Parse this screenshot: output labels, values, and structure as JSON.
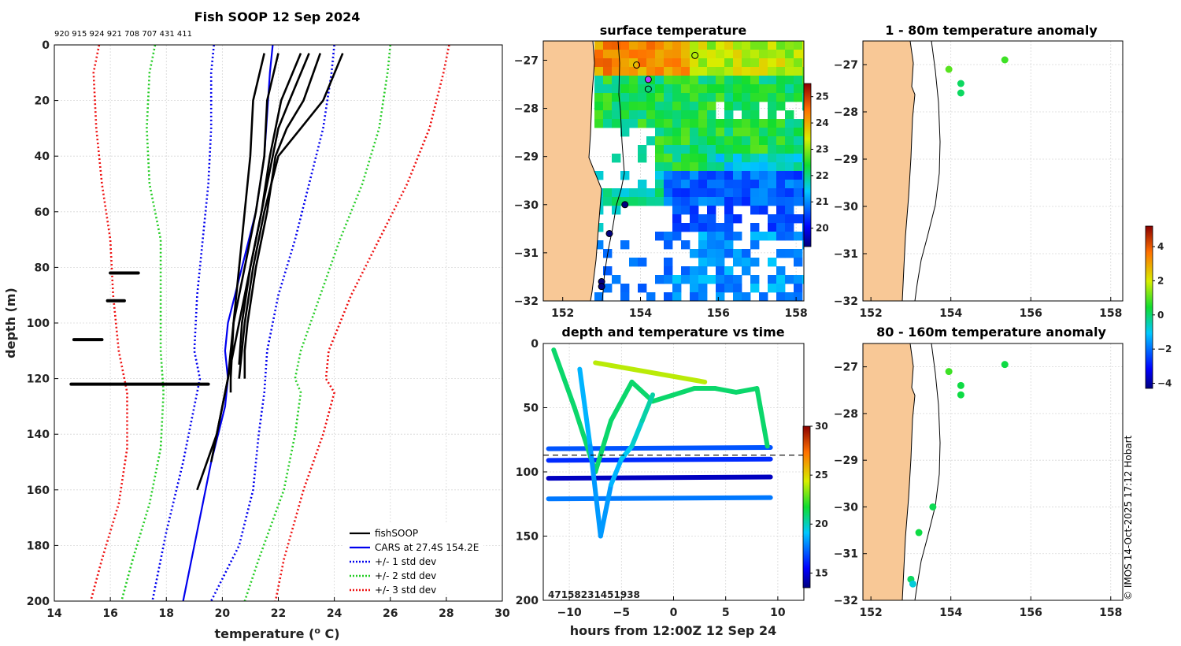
{
  "chart_data": [
    {
      "id": "profile",
      "type": "line",
      "title": "Fish SOOP 12 Sep 2024",
      "id_labels": "920 915 924 921 708 707 431 411",
      "xlabel": "temperature (",
      "xlabel_sup": "o",
      "xlabel_unit": " C)",
      "ylabel": "depth (m)",
      "xlim": [
        14,
        30
      ],
      "ylim": [
        0,
        200
      ],
      "xticks": [
        14,
        16,
        18,
        20,
        22,
        24,
        26,
        28,
        30
      ],
      "yticks": [
        0,
        20,
        40,
        60,
        80,
        100,
        120,
        140,
        160,
        180,
        200
      ],
      "legend": [
        "fishSOOP",
        "CARS at 27.4S 154.2E",
        "+/- 1 std dev",
        "+/- 2 std dev",
        "+/- 3 std dev"
      ],
      "legend_colors": [
        "#000000",
        "#0000ee",
        "#0000ee",
        "#22cc22",
        "#ee1111"
      ],
      "series": [
        {
          "name": "CARS mean",
          "depth": [
            0,
            10,
            25,
            40,
            60,
            80,
            100,
            110,
            120,
            130,
            150,
            175,
            200
          ],
          "temp": [
            21.8,
            21.7,
            21.6,
            21.5,
            21.2,
            20.7,
            20.2,
            20.1,
            20.2,
            20.1,
            19.6,
            19.1,
            18.6
          ]
        },
        {
          "name": "-1 std",
          "depth": [
            0,
            10,
            30,
            50,
            70,
            90,
            110,
            120,
            130,
            150,
            175,
            200
          ],
          "temp": [
            19.7,
            19.6,
            19.6,
            19.5,
            19.3,
            19.1,
            19.0,
            19.2,
            19.0,
            18.6,
            18.0,
            17.5
          ]
        },
        {
          "name": "+1 std",
          "depth": [
            0,
            10,
            30,
            50,
            70,
            90,
            110,
            125,
            140,
            160,
            180,
            200
          ],
          "temp": [
            24.0,
            23.9,
            23.6,
            23.1,
            22.6,
            22.0,
            21.6,
            21.5,
            21.3,
            21.1,
            20.6,
            19.6
          ]
        },
        {
          "name": "-2 std",
          "depth": [
            0,
            10,
            30,
            50,
            70,
            90,
            110,
            125,
            145,
            165,
            185,
            200
          ],
          "temp": [
            17.6,
            17.4,
            17.3,
            17.4,
            17.8,
            17.8,
            17.8,
            17.9,
            17.8,
            17.4,
            16.8,
            16.4
          ]
        },
        {
          "name": "+2 std",
          "depth": [
            0,
            10,
            30,
            50,
            70,
            90,
            110,
            120,
            125,
            140,
            160,
            185,
            200
          ],
          "temp": [
            26.0,
            25.9,
            25.6,
            25.0,
            24.2,
            23.5,
            22.8,
            22.6,
            22.8,
            22.6,
            22.2,
            21.3,
            20.8
          ]
        },
        {
          "name": "-3 std",
          "depth": [
            0,
            10,
            30,
            50,
            70,
            90,
            110,
            125,
            145,
            165,
            185,
            200
          ],
          "temp": [
            15.6,
            15.4,
            15.5,
            15.7,
            16.0,
            16.1,
            16.3,
            16.6,
            16.6,
            16.3,
            15.7,
            15.3
          ]
        },
        {
          "name": "+3 std",
          "depth": [
            0,
            10,
            30,
            50,
            70,
            90,
            110,
            120,
            125,
            140,
            160,
            185,
            200
          ],
          "temp": [
            28.1,
            27.9,
            27.4,
            26.6,
            25.6,
            24.6,
            23.8,
            23.7,
            24.0,
            23.6,
            22.9,
            22.2,
            21.9
          ]
        }
      ],
      "profiles": [
        {
          "depth": [
            3,
            20,
            40,
            60,
            80,
            100,
            120,
            125
          ],
          "temp": [
            21.5,
            21.1,
            21.0,
            20.8,
            20.6,
            20.4,
            20.3,
            20.3
          ]
        },
        {
          "depth": [
            3,
            20,
            40,
            60,
            80,
            100,
            120,
            140,
            160
          ],
          "temp": [
            22.0,
            21.6,
            21.5,
            21.2,
            20.8,
            20.4,
            20.2,
            19.8,
            19.1
          ]
        },
        {
          "depth": [
            3,
            20,
            40,
            60,
            80,
            100,
            120,
            150
          ],
          "temp": [
            22.8,
            22.1,
            21.7,
            21.4,
            21.0,
            20.6,
            20.2,
            19.6
          ]
        },
        {
          "depth": [
            3,
            20,
            30,
            40,
            60,
            80,
            100,
            110,
            120
          ],
          "temp": [
            23.5,
            22.9,
            22.3,
            21.9,
            21.6,
            21.2,
            20.9,
            20.8,
            20.8
          ]
        },
        {
          "depth": [
            3,
            20,
            30,
            40,
            60,
            80,
            100,
            120
          ],
          "temp": [
            24.3,
            23.6,
            22.8,
            22.0,
            21.5,
            21.1,
            20.8,
            20.6
          ]
        },
        {
          "depth": [
            3,
            20,
            30,
            40,
            60,
            80,
            100,
            115
          ],
          "temp": [
            23.1,
            22.4,
            22.0,
            21.8,
            21.4,
            21.0,
            20.7,
            20.6
          ]
        }
      ],
      "flat_segments": [
        {
          "depth": 82,
          "t0": 16.0,
          "t1": 17.0
        },
        {
          "depth": 92,
          "t0": 15.9,
          "t1": 16.5
        },
        {
          "depth": 106,
          "t0": 14.7,
          "t1": 15.7
        },
        {
          "depth": 122,
          "t0": 14.6,
          "t1": 19.5
        }
      ]
    },
    {
      "id": "sst_map",
      "type": "heatmap",
      "title": "surface temperature",
      "xlim": [
        151.5,
        158.2
      ],
      "ylim": [
        -32,
        -26.6
      ],
      "xticks": [
        152,
        154,
        156,
        158
      ],
      "yticks": [
        -27,
        -28,
        -29,
        -30,
        -31,
        -32
      ],
      "colorbar": {
        "min": 19.3,
        "max": 25.5,
        "ticks": [
          20,
          21,
          22,
          23,
          24,
          25
        ]
      },
      "stations": [
        {
          "lon": 153.9,
          "lat": -27.1,
          "fill": "none"
        },
        {
          "lon": 154.2,
          "lat": -27.4,
          "fill": "#b040ff"
        },
        {
          "lon": 154.2,
          "lat": -27.6,
          "fill": "none"
        },
        {
          "lon": 155.4,
          "lat": -26.9,
          "fill": "none"
        },
        {
          "lon": 153.6,
          "lat": -30.0,
          "fill": "#000080"
        },
        {
          "lon": 153.2,
          "lat": -30.6,
          "fill": "#000080"
        },
        {
          "lon": 153.0,
          "lat": -31.6,
          "fill": "#000080"
        },
        {
          "lon": 153.0,
          "lat": -31.7,
          "fill": "#000080"
        }
      ]
    },
    {
      "id": "anom_shallow",
      "type": "scatter",
      "title": "1 - 80m temperature anomaly",
      "xlim": [
        151.8,
        158.3
      ],
      "ylim": [
        -32,
        -26.5
      ],
      "xticks": [
        152,
        154,
        156,
        158
      ],
      "yticks": [
        -27,
        -28,
        -29,
        -30,
        -31,
        -32
      ],
      "points": [
        {
          "lon": 153.95,
          "lat": -27.1,
          "anom": 1.0
        },
        {
          "lon": 155.35,
          "lat": -26.9,
          "anom": 0.8
        },
        {
          "lon": 154.25,
          "lat": -27.4,
          "anom": 0.1
        },
        {
          "lon": 154.25,
          "lat": -27.6,
          "anom": 0.1
        }
      ]
    },
    {
      "id": "anom_deep",
      "type": "scatter",
      "title": "80 - 160m temperature anomaly",
      "xlim": [
        151.8,
        158.3
      ],
      "ylim": [
        -32,
        -26.5
      ],
      "xticks": [
        152,
        154,
        156,
        158
      ],
      "yticks": [
        -27,
        -28,
        -29,
        -30,
        -31,
        -32
      ],
      "points": [
        {
          "lon": 153.95,
          "lat": -27.1,
          "anom": 0.8
        },
        {
          "lon": 155.35,
          "lat": -26.95,
          "anom": 0.3
        },
        {
          "lon": 154.25,
          "lat": -27.4,
          "anom": 0.3
        },
        {
          "lon": 154.25,
          "lat": -27.6,
          "anom": 0.3
        },
        {
          "lon": 153.55,
          "lat": -30.0,
          "anom": 0.2
        },
        {
          "lon": 153.2,
          "lat": -30.55,
          "anom": 0.3
        },
        {
          "lon": 153.0,
          "lat": -31.55,
          "anom": 0.1
        },
        {
          "lon": 153.05,
          "lat": -31.65,
          "anom": -0.8
        }
      ],
      "colorbar": {
        "min": -4.3,
        "max": 5.2,
        "ticks": [
          4,
          2,
          0,
          -2,
          -4
        ]
      }
    },
    {
      "id": "depth_time",
      "type": "scatter",
      "title": "depth and temperature vs time",
      "xlabel": "hours from 12:00Z 12 Sep 24",
      "xlim": [
        -12.5,
        12.5
      ],
      "ylim": [
        0,
        200
      ],
      "xticks": [
        -10,
        -5,
        0,
        5,
        10
      ],
      "yticks": [
        0,
        50,
        100,
        150,
        200
      ],
      "reference_depth": 87,
      "bottom_labels": "47158231451938",
      "colorbar": {
        "min": 13.5,
        "max": 30,
        "ticks": [
          30,
          25,
          20,
          15
        ]
      },
      "tracks": [
        {
          "hours": [
            -12,
            9.3
          ],
          "depth": [
            82,
            81
          ],
          "temp": [
            16.5,
            17.5
          ]
        },
        {
          "hours": [
            -12,
            9.3
          ],
          "depth": [
            91,
            90
          ],
          "temp": [
            16.0,
            16.5
          ]
        },
        {
          "hours": [
            -12,
            9.3
          ],
          "depth": [
            105,
            104
          ],
          "temp": [
            14.5,
            14.5
          ]
        },
        {
          "hours": [
            -12,
            9.3
          ],
          "depth": [
            121,
            120
          ],
          "temp": [
            16.8,
            18.5
          ]
        },
        {
          "hours": [
            -7.5,
            3
          ],
          "depth": [
            15,
            30
          ],
          "temp": [
            24,
            24
          ]
        },
        {
          "hours": [
            -11.5,
            -9.5,
            -7.5,
            -6,
            -4,
            -2,
            0,
            2,
            4,
            6,
            8,
            9
          ],
          "depth": [
            5,
            50,
            100,
            60,
            30,
            45,
            40,
            35,
            35,
            38,
            35,
            80
          ],
          "temp": [
            21,
            21,
            21,
            21,
            21,
            21,
            21,
            21,
            21,
            21,
            21,
            21
          ]
        },
        {
          "hours": [
            -9,
            -8,
            -7,
            -6,
            -5,
            -4,
            -3,
            -2
          ],
          "depth": [
            20,
            80,
            150,
            110,
            90,
            80,
            60,
            40
          ],
          "temp": [
            19,
            18.5,
            18,
            18.5,
            19,
            19.5,
            20,
            20.5
          ]
        }
      ]
    }
  ],
  "watermark": "© IMOS 14-Oct-2025 17:12 Hobart"
}
